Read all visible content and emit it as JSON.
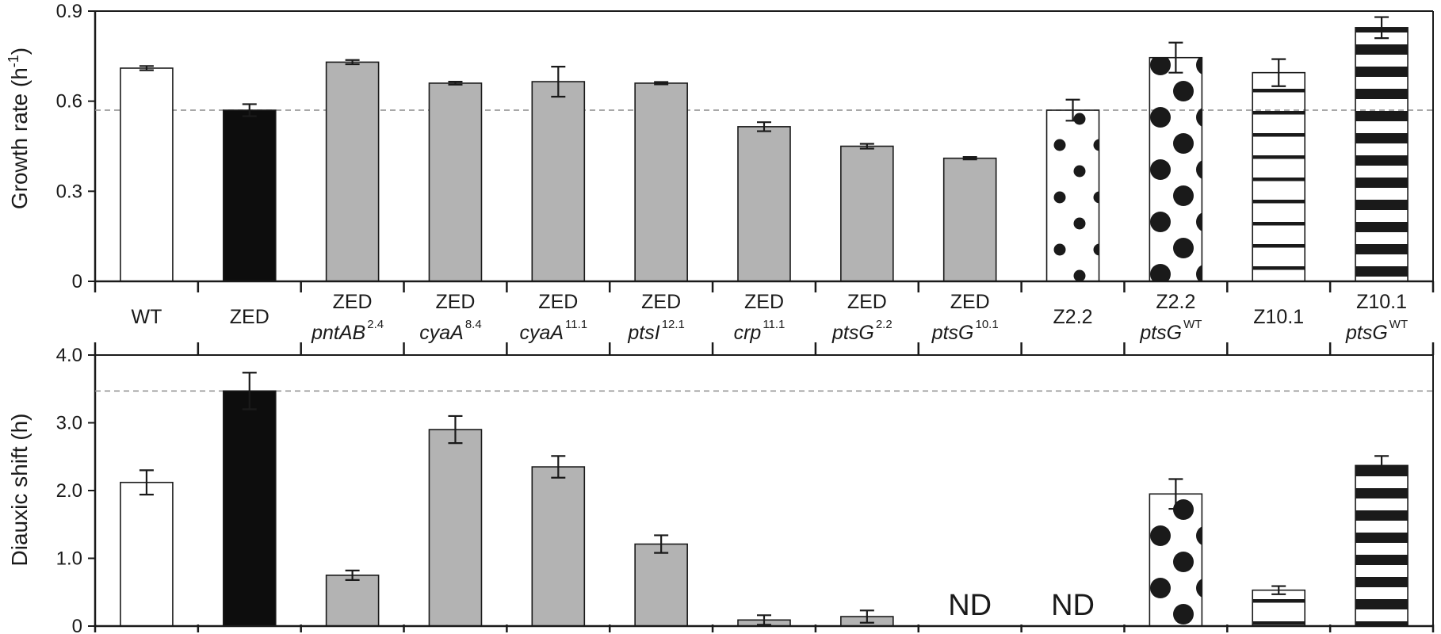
{
  "chart_data": [
    {
      "type": "bar",
      "ylabel_text": "Growth rate (h",
      "ylabel_sup": "-1",
      "ylabel_close": ")",
      "ylim": [
        0,
        0.9
      ],
      "yticks": [
        "0",
        "0.3",
        "0.6",
        "0.9"
      ],
      "ytick_values": [
        0,
        0.3,
        0.6,
        0.9
      ],
      "reference_line": 0.57,
      "grid": false,
      "categories": [
        {
          "line1": "WT",
          "line2": "",
          "sup": ""
        },
        {
          "line1": "ZED",
          "line2": "",
          "sup": ""
        },
        {
          "line1": "ZED",
          "line2": "pntAB",
          "sup": "2.4"
        },
        {
          "line1": "ZED",
          "line2": "cyaA",
          "sup": "8.4"
        },
        {
          "line1": "ZED",
          "line2": "cyaA",
          "sup": "11.1"
        },
        {
          "line1": "ZED",
          "line2": "ptsI",
          "sup": "12.1"
        },
        {
          "line1": "ZED",
          "line2": "crp",
          "sup": "11.1"
        },
        {
          "line1": "ZED",
          "line2": "ptsG",
          "sup": "2.2"
        },
        {
          "line1": "ZED",
          "line2": "ptsG",
          "sup": "10.1"
        },
        {
          "line1": "Z2.2",
          "line2": "",
          "sup": ""
        },
        {
          "line1": "Z2.2",
          "line2": "ptsG",
          "sup": "WT"
        },
        {
          "line1": "Z10.1",
          "line2": "",
          "sup": ""
        },
        {
          "line1": "Z10.1",
          "line2": "ptsG",
          "sup": "WT"
        }
      ],
      "values": [
        0.71,
        0.57,
        0.73,
        0.66,
        0.665,
        0.66,
        0.515,
        0.45,
        0.41,
        0.57,
        0.745,
        0.695,
        0.845
      ],
      "errors": [
        0.007,
        0.02,
        0.007,
        0.005,
        0.05,
        0.004,
        0.015,
        0.008,
        0.004,
        0.035,
        0.05,
        0.045,
        0.035
      ],
      "fills": [
        "white",
        "black",
        "gray",
        "gray",
        "gray",
        "gray",
        "gray",
        "gray",
        "gray",
        "dots-small",
        "dots-large",
        "stripes-thin",
        "stripes-thick"
      ]
    },
    {
      "type": "bar",
      "ylabel": "Diauxic shift (h)",
      "ylim": [
        0,
        4.0
      ],
      "yticks": [
        "0",
        "1.0",
        "2.0",
        "3.0",
        "4.0"
      ],
      "ytick_values": [
        0,
        1,
        2,
        3,
        4
      ],
      "reference_line": 3.47,
      "grid": false,
      "values": [
        2.12,
        3.47,
        0.75,
        2.9,
        2.35,
        1.21,
        0.09,
        0.14,
        null,
        null,
        1.95,
        0.53,
        2.37
      ],
      "errors": [
        0.18,
        0.27,
        0.07,
        0.2,
        0.16,
        0.13,
        0.07,
        0.09,
        null,
        null,
        0.22,
        0.06,
        0.14
      ],
      "labels": [
        "",
        "",
        "",
        "",
        "",
        "",
        "",
        "",
        "ND",
        "ND",
        "",
        "",
        ""
      ],
      "fills": [
        "white",
        "black",
        "gray",
        "gray",
        "gray",
        "gray",
        "gray",
        "gray",
        "gray",
        "dots-small",
        "dots-large",
        "stripes-thin",
        "stripes-thick"
      ]
    }
  ],
  "colors": {
    "axis": "#1a1a1a",
    "bar_gray": "#b3b3b3",
    "bar_black": "#0d0d0d",
    "bar_white": "#ffffff",
    "pattern_ink": "#1a1a1a",
    "reference_line": "#8c8c8c"
  }
}
